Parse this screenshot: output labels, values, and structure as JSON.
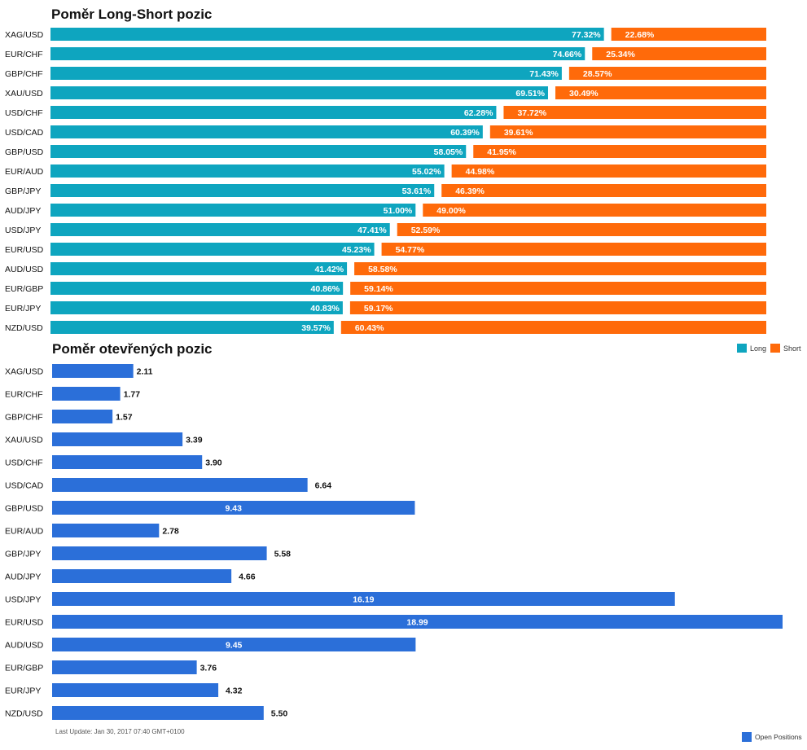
{
  "chart_data": [
    {
      "type": "bar",
      "orientation": "horizontal",
      "stacked": true,
      "title": "Poměr Long-Short pozic",
      "categories": [
        "XAG/USD",
        "EUR/CHF",
        "GBP/CHF",
        "XAU/USD",
        "USD/CHF",
        "USD/CAD",
        "GBP/USD",
        "EUR/AUD",
        "GBP/JPY",
        "AUD/JPY",
        "USD/JPY",
        "EUR/USD",
        "AUD/USD",
        "EUR/GBP",
        "EUR/JPY",
        "NZD/USD"
      ],
      "series": [
        {
          "name": "Long",
          "color": "#0ea5bf",
          "values": [
            77.32,
            74.66,
            71.43,
            69.51,
            62.28,
            60.39,
            58.05,
            55.02,
            53.61,
            51.0,
            47.41,
            45.23,
            41.42,
            40.86,
            40.83,
            39.57
          ]
        },
        {
          "name": "Short",
          "color": "#ff6a0a",
          "values": [
            22.68,
            25.34,
            28.57,
            30.49,
            37.72,
            39.61,
            41.95,
            44.98,
            46.39,
            49.0,
            52.59,
            54.77,
            58.58,
            59.14,
            59.17,
            60.43
          ]
        }
      ],
      "value_suffix": "%",
      "legend_position": "right, below chart",
      "xlim": [
        0,
        100
      ],
      "grid": false
    },
    {
      "type": "bar",
      "orientation": "horizontal",
      "title": "Poměr otevřených pozic",
      "categories": [
        "XAG/USD",
        "EUR/CHF",
        "GBP/CHF",
        "XAU/USD",
        "USD/CHF",
        "USD/CAD",
        "GBP/USD",
        "EUR/AUD",
        "GBP/JPY",
        "AUD/JPY",
        "USD/JPY",
        "EUR/USD",
        "AUD/USD",
        "EUR/GBP",
        "EUR/JPY",
        "NZD/USD"
      ],
      "series": [
        {
          "name": "Open Positions",
          "color": "#2b6fd9",
          "values": [
            2.11,
            1.77,
            1.57,
            3.39,
            3.9,
            6.64,
            9.43,
            2.78,
            5.58,
            4.66,
            16.19,
            18.99,
            9.45,
            3.76,
            4.32,
            5.5
          ]
        }
      ],
      "xlim": [
        0,
        18.99
      ],
      "legend_position": "bottom-right",
      "grid": false
    }
  ],
  "footer": {
    "last_update": "Last Update: Jan 30, 2017 07:40 GMT+0100"
  }
}
